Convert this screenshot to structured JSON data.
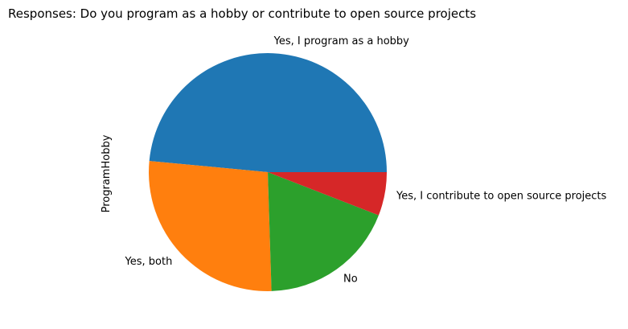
{
  "chart_data": {
    "type": "pie",
    "title": "Responses: Do you program as a hobby or contribute to open source projects",
    "ylabel": "ProgramHobby",
    "categories": [
      "Yes, I program as a hobby",
      "Yes, both",
      "No",
      "Yes, I contribute to open source projects"
    ],
    "values": [
      48.5,
      27.0,
      18.6,
      5.9
    ],
    "colors": [
      "#1f77b4",
      "#ff7f0e",
      "#2ca02c",
      "#d62728"
    ],
    "start_angle_deg": 0,
    "direction": "counterclockwise",
    "legend": false
  }
}
